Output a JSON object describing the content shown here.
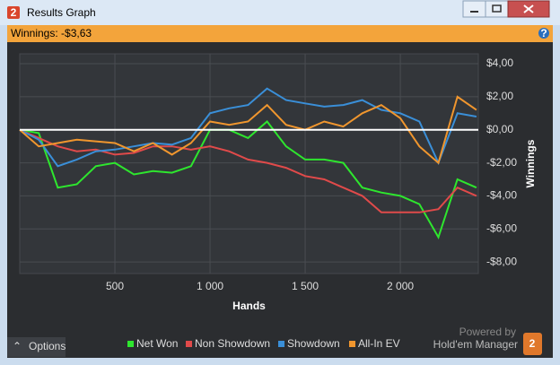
{
  "window": {
    "title": "Results Graph",
    "summary": "Winnings: -$3,63",
    "options": "Options",
    "powered_by": "Powered by",
    "brand": "Hold'em Manager"
  },
  "chart_data": {
    "type": "line",
    "x_label": "Hands",
    "y_label": "Winnings",
    "x": [
      0,
      100,
      200,
      300,
      400,
      500,
      600,
      700,
      800,
      900,
      1000,
      1100,
      1200,
      1300,
      1400,
      1500,
      1600,
      1700,
      1800,
      1900,
      2000,
      2100,
      2200,
      2300,
      2400
    ],
    "xlim": [
      0,
      2410
    ],
    "xticks": [
      500,
      {
        "value": 1000,
        "label": "1 000"
      },
      {
        "value": 1500,
        "label": "1 500"
      },
      {
        "value": 2000,
        "label": "2 000"
      }
    ],
    "ylim": [
      -8.7,
      4.6
    ],
    "yticks": [
      {
        "value": 4,
        "label": "$4,00"
      },
      {
        "value": 2,
        "label": "$2,00"
      },
      {
        "value": 0,
        "label": "$0,00"
      },
      {
        "value": -2,
        "label": "-$2,00"
      },
      {
        "value": -4,
        "label": "-$4,00"
      },
      {
        "value": -6,
        "label": "-$6,00"
      },
      {
        "value": -8,
        "label": "-$8,00"
      }
    ],
    "grid": true,
    "series": [
      {
        "name": "Net Won",
        "color": "#2ee62e",
        "values": [
          0,
          -0.2,
          -3.5,
          -3.3,
          -2.2,
          -2.0,
          -2.7,
          -2.5,
          -2.6,
          -2.2,
          0,
          0,
          -0.5,
          0.5,
          -1.0,
          -1.8,
          -1.8,
          -2.0,
          -3.5,
          -3.8,
          -4.0,
          -4.5,
          -6.5,
          -3.0,
          -3.5
        ]
      },
      {
        "name": "Non Showdown",
        "color": "#e04a4a",
        "values": [
          0,
          -0.5,
          -1.0,
          -1.3,
          -1.2,
          -1.5,
          -1.4,
          -1.0,
          -1.0,
          -1.2,
          -1.0,
          -1.3,
          -1.8,
          -2.0,
          -2.3,
          -2.8,
          -3.0,
          -3.5,
          -4.0,
          -5.0,
          -5.0,
          -5.0,
          -4.8,
          -3.5,
          -4.0
        ]
      },
      {
        "name": "Showdown",
        "color": "#3a8fd8",
        "values": [
          0,
          -0.6,
          -2.2,
          -1.8,
          -1.3,
          -1.2,
          -1.0,
          -0.8,
          -0.9,
          -0.5,
          1.0,
          1.3,
          1.5,
          2.5,
          1.8,
          1.6,
          1.4,
          1.5,
          1.8,
          1.2,
          1.0,
          0.5,
          -2.0,
          1.0,
          0.8
        ]
      },
      {
        "name": "All-In EV",
        "color": "#f0962e",
        "values": [
          0,
          -1.0,
          -0.8,
          -0.6,
          -0.7,
          -0.8,
          -1.3,
          -0.8,
          -1.5,
          -0.8,
          0.5,
          0.3,
          0.5,
          1.5,
          0.3,
          0.0,
          0.5,
          0.2,
          1.0,
          1.5,
          0.7,
          -1.0,
          -2.0,
          2.0,
          1.2
        ]
      }
    ]
  }
}
